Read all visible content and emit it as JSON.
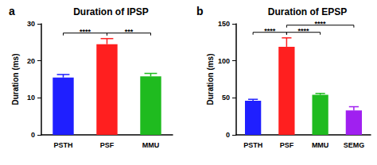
{
  "chart_data": [
    {
      "type": "bar",
      "panel_label": "a",
      "title": "Duration of IPSP",
      "y_label": "Duration (ms)",
      "categories": [
        "PSTH",
        "PSF",
        "MMU"
      ],
      "values": [
        15.5,
        24.5,
        15.8
      ],
      "errors": [
        0.8,
        1.5,
        0.8
      ],
      "colors": [
        "#1f1fff",
        "#ff1f1f",
        "#1fbb1f"
      ],
      "ylim": [
        0,
        30
      ],
      "yticks": [
        0,
        10,
        20,
        30
      ],
      "annotations": [
        {
          "from": "PSTH",
          "to": "PSF",
          "text": "****"
        },
        {
          "from": "PSF",
          "to": "MMU",
          "text": "***"
        }
      ]
    },
    {
      "type": "bar",
      "panel_label": "b",
      "title": "Duration of EPSP",
      "y_label": "Duration (ms)",
      "categories": [
        "PSTH",
        "PSF",
        "MMU",
        "SEMG"
      ],
      "values": [
        46,
        119,
        54,
        33
      ],
      "errors": [
        2,
        12,
        2,
        5
      ],
      "colors": [
        "#1f1fff",
        "#ff1f1f",
        "#1fbb1f",
        "#a020f0"
      ],
      "ylim": [
        0,
        150
      ],
      "yticks": [
        0,
        50,
        100,
        150
      ],
      "annotations": [
        {
          "from": "PSTH",
          "to": "PSF",
          "text": "****"
        },
        {
          "from": "PSF",
          "to": "MMU",
          "text": "****"
        },
        {
          "from": "PSF",
          "to": "SEMG",
          "text": "****"
        }
      ]
    }
  ]
}
